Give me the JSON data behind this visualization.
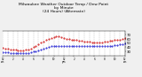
{
  "title": "Milwaukee Weather Outdoor Temp / Dew Point\nby Minute\n(24 Hours) (Alternate)",
  "title_fontsize": 3.2,
  "background_color": "#f0f0f0",
  "plot_bg_color": "#ffffff",
  "grid_color": "#888888",
  "ylim": [
    20,
    80
  ],
  "xlim": [
    0,
    1440
  ],
  "yticks": [
    30,
    40,
    50,
    60,
    70
  ],
  "ytick_fontsize": 2.8,
  "xtick_fontsize": 2.0,
  "temp_color": "#cc0000",
  "dew_color": "#0000cc",
  "temp_data": [
    [
      0,
      38
    ],
    [
      30,
      37
    ],
    [
      60,
      36
    ],
    [
      90,
      35
    ],
    [
      120,
      34
    ],
    [
      150,
      34
    ],
    [
      180,
      33
    ],
    [
      210,
      33
    ],
    [
      240,
      33
    ],
    [
      270,
      34
    ],
    [
      300,
      35
    ],
    [
      330,
      37
    ],
    [
      360,
      40
    ],
    [
      390,
      44
    ],
    [
      420,
      48
    ],
    [
      450,
      51
    ],
    [
      480,
      54
    ],
    [
      510,
      57
    ],
    [
      540,
      60
    ],
    [
      570,
      63
    ],
    [
      600,
      65
    ],
    [
      630,
      66
    ],
    [
      660,
      66
    ],
    [
      690,
      65
    ],
    [
      720,
      63
    ],
    [
      750,
      61
    ],
    [
      780,
      60
    ],
    [
      810,
      59
    ],
    [
      840,
      58
    ],
    [
      870,
      57
    ],
    [
      900,
      56
    ],
    [
      930,
      55
    ],
    [
      960,
      54
    ],
    [
      990,
      53
    ],
    [
      1020,
      53
    ],
    [
      1050,
      52
    ],
    [
      1080,
      52
    ],
    [
      1110,
      51
    ],
    [
      1140,
      51
    ],
    [
      1170,
      52
    ],
    [
      1200,
      53
    ],
    [
      1230,
      54
    ],
    [
      1260,
      55
    ],
    [
      1290,
      56
    ],
    [
      1320,
      57
    ],
    [
      1350,
      58
    ],
    [
      1380,
      59
    ],
    [
      1410,
      60
    ],
    [
      1440,
      62
    ]
  ],
  "dew_data": [
    [
      0,
      28
    ],
    [
      30,
      27
    ],
    [
      60,
      27
    ],
    [
      90,
      26
    ],
    [
      120,
      25
    ],
    [
      150,
      25
    ],
    [
      180,
      25
    ],
    [
      210,
      25
    ],
    [
      240,
      25
    ],
    [
      270,
      25
    ],
    [
      300,
      26
    ],
    [
      330,
      27
    ],
    [
      360,
      29
    ],
    [
      390,
      31
    ],
    [
      420,
      33
    ],
    [
      450,
      35
    ],
    [
      480,
      37
    ],
    [
      510,
      39
    ],
    [
      540,
      41
    ],
    [
      570,
      42
    ],
    [
      600,
      43
    ],
    [
      630,
      44
    ],
    [
      660,
      44
    ],
    [
      690,
      44
    ],
    [
      720,
      44
    ],
    [
      750,
      44
    ],
    [
      780,
      44
    ],
    [
      810,
      44
    ],
    [
      840,
      44
    ],
    [
      870,
      44
    ],
    [
      900,
      44
    ],
    [
      930,
      44
    ],
    [
      960,
      44
    ],
    [
      990,
      44
    ],
    [
      1020,
      44
    ],
    [
      1050,
      44
    ],
    [
      1080,
      44
    ],
    [
      1110,
      44
    ],
    [
      1140,
      44
    ],
    [
      1170,
      44
    ],
    [
      1200,
      44
    ],
    [
      1230,
      44
    ],
    [
      1260,
      44
    ],
    [
      1290,
      44
    ],
    [
      1320,
      45
    ],
    [
      1350,
      46
    ],
    [
      1380,
      47
    ],
    [
      1410,
      48
    ],
    [
      1440,
      49
    ]
  ],
  "grid_positions": [
    0,
    60,
    120,
    180,
    240,
    300,
    360,
    420,
    480,
    540,
    600,
    660,
    720,
    780,
    840,
    900,
    960,
    1020,
    1080,
    1140,
    1200,
    1260,
    1320,
    1380,
    1440
  ],
  "xtick_positions": [
    0,
    120,
    240,
    360,
    480,
    600,
    720,
    840,
    960,
    1080,
    1200,
    1320,
    1440
  ],
  "xtick_labels": [
    "12\nam",
    "2",
    "4",
    "6",
    "8",
    "10",
    "12\npm",
    "2",
    "4",
    "6",
    "8",
    "10",
    "12\nam"
  ]
}
